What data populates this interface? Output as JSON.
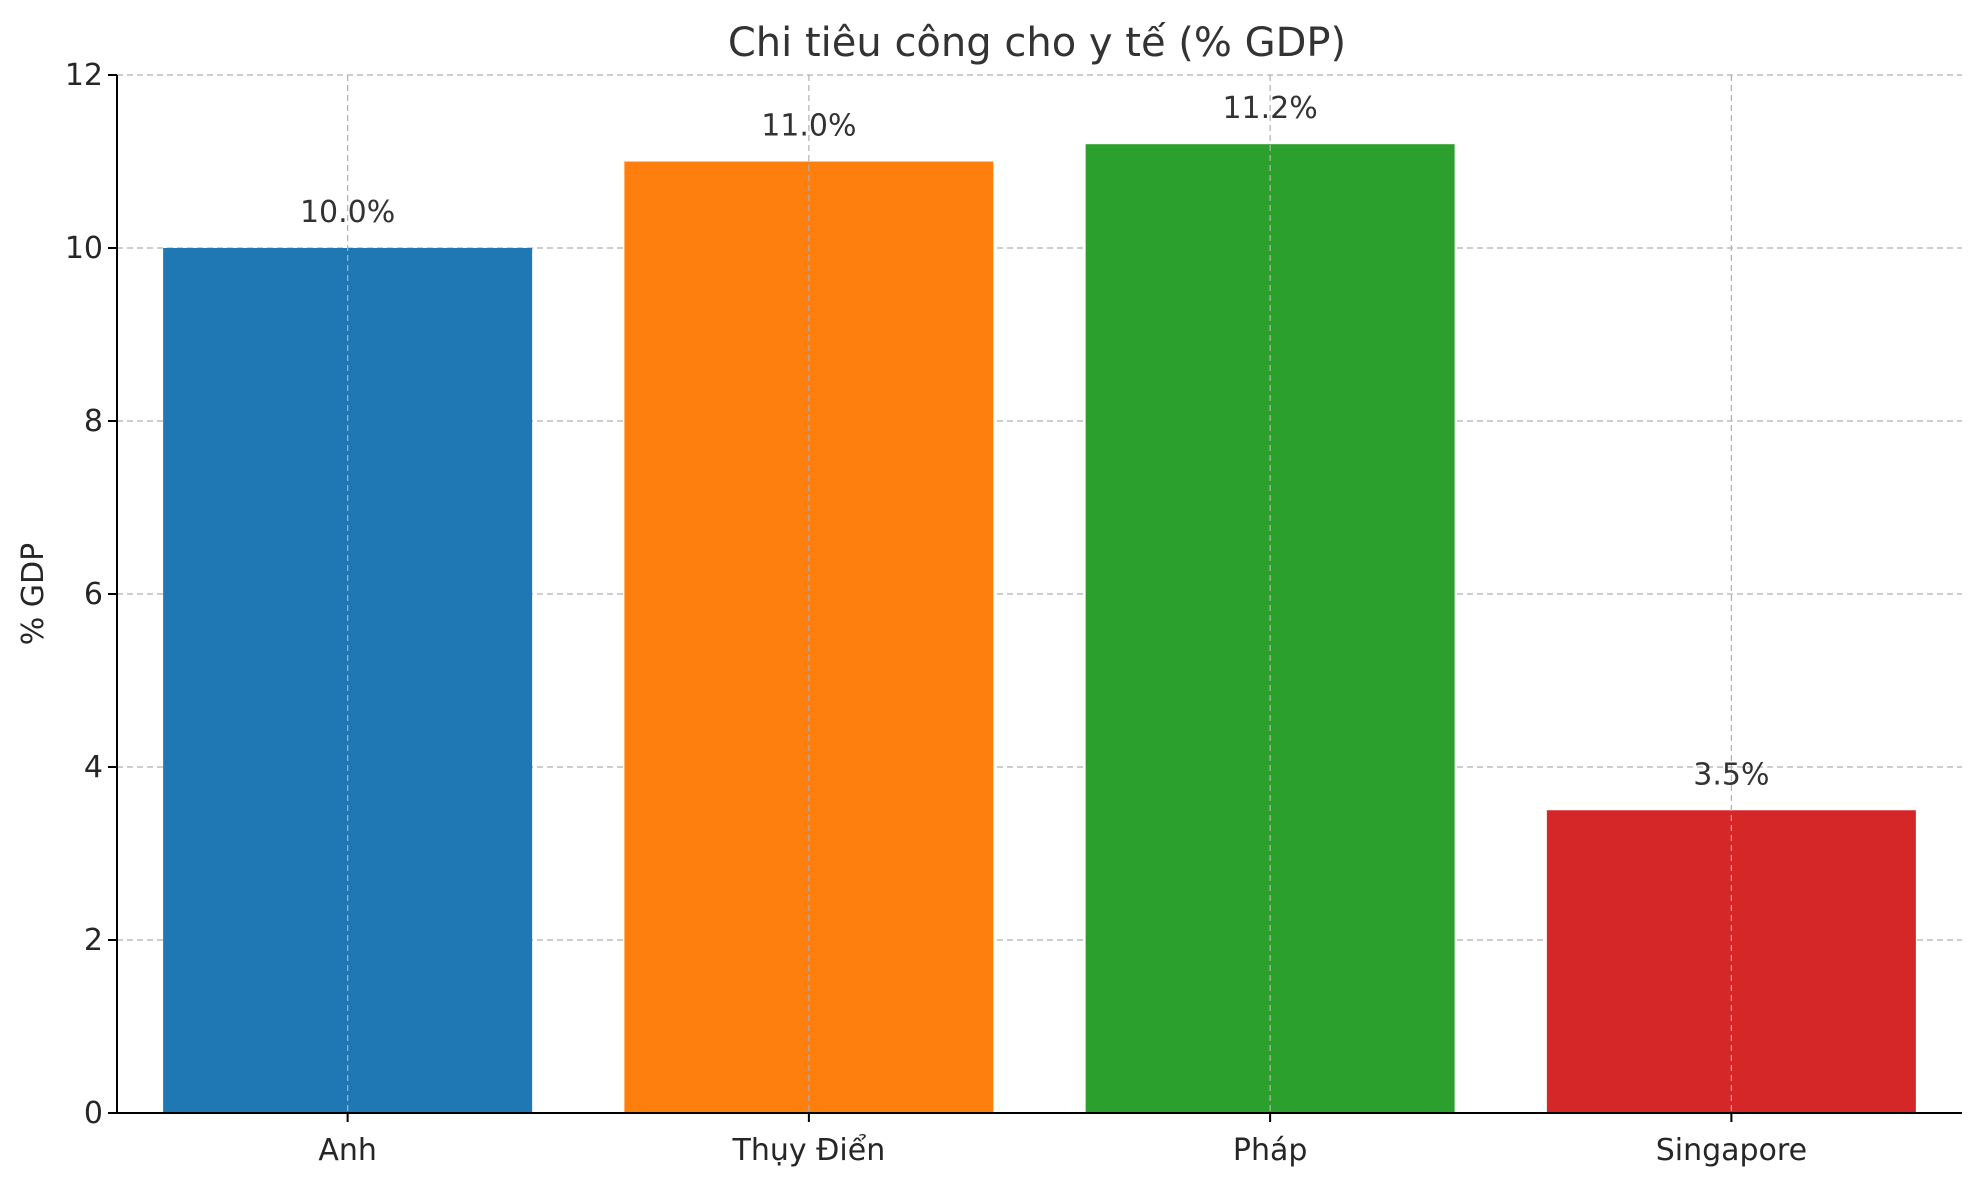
{
  "chart_data": {
    "type": "bar",
    "title": "Chi tiêu công cho y tế (% GDP)",
    "xlabel": "",
    "ylabel": "% GDP",
    "categories": [
      "Anh",
      "Thụy Điển",
      "Pháp",
      "Singapore"
    ],
    "values": [
      10.0,
      11.0,
      11.2,
      3.5
    ],
    "value_labels": [
      "10.0%",
      "11.0%",
      "11.2%",
      "3.5%"
    ],
    "colors": [
      "#1f77b4",
      "#ff7f0e",
      "#2ca02c",
      "#d62728"
    ],
    "ylim": [
      0,
      12
    ],
    "yticks": [
      0,
      2,
      4,
      6,
      8,
      10,
      12
    ],
    "ytick_labels": [
      "0",
      "2",
      "4",
      "6",
      "8",
      "10",
      "12"
    ],
    "grid": true,
    "legend": "none"
  }
}
